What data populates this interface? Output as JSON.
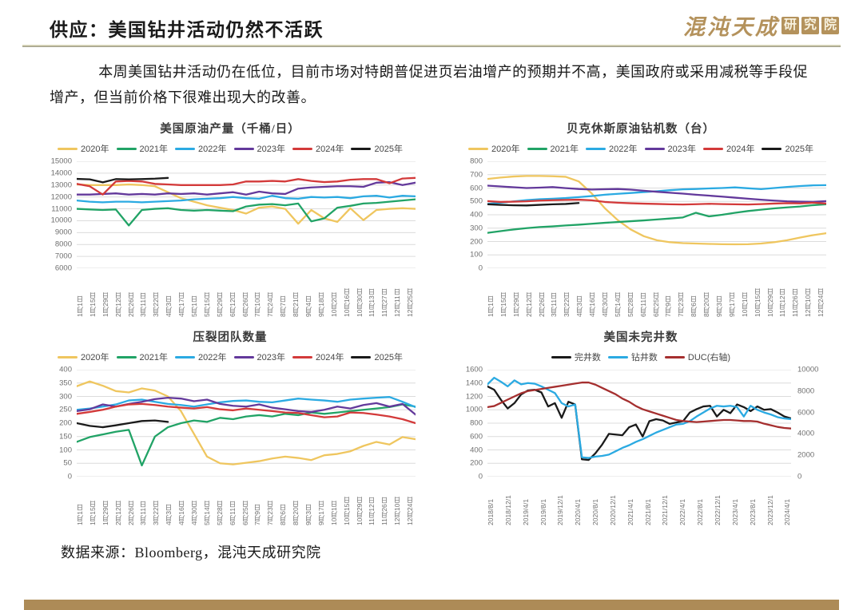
{
  "page": {
    "title": "供应：美国钻井活动仍然不活跃",
    "logo_text": "混沌天成",
    "logo_stamps": [
      "研",
      "究",
      "院"
    ],
    "paragraph": "本周美国钻井活动仍在低位，目前市场对特朗普促进页岩油增产的预期并不高，美国政府或采用减税等手段促增产，但当前价格下很难出现大的改善。",
    "source_note": "数据来源：Bloomberg，混沌天成研究院",
    "accent_color": "#ad8b57",
    "divider_color": "#94927c"
  },
  "chart_data": [
    {
      "type": "line",
      "title": "美国原油产量（千桶/日）",
      "ylim": [
        6000,
        15000
      ],
      "yticks": [
        15000,
        14000,
        13000,
        12000,
        11000,
        10000,
        9000,
        8000,
        7000,
        6000
      ],
      "grid": true,
      "legend_position": "top",
      "categories": [
        "1月1日",
        "1月15日",
        "1月29日",
        "2月12日",
        "2月26日",
        "3月11日",
        "3月22日",
        "4月3日",
        "4月17日",
        "5月1日",
        "5月15日",
        "5月29日",
        "6月12日",
        "6月26日",
        "7月10日",
        "7月24日",
        "8月7日",
        "8月21日",
        "9月4日",
        "9月18日",
        "10月2日",
        "10月16日",
        "10月30日",
        "11月13日",
        "11月27日",
        "12月11日",
        "12月25日"
      ],
      "series": [
        {
          "name": "2020年",
          "color": "#efc65f",
          "values": [
            13050,
            13000,
            13000,
            13000,
            13050,
            13000,
            12900,
            12400,
            11900,
            11600,
            11300,
            11100,
            10900,
            10600,
            11100,
            11200,
            11000,
            9750,
            10900,
            10200,
            9900,
            11050,
            10050,
            10900,
            11000,
            11050,
            11000
          ]
        },
        {
          "name": "2021年",
          "color": "#21a366",
          "values": [
            11000,
            10950,
            10900,
            10950,
            9600,
            10900,
            11000,
            11050,
            10900,
            10850,
            10900,
            10850,
            10800,
            11200,
            11350,
            11400,
            11300,
            11450,
            9950,
            10200,
            11100,
            11250,
            11450,
            11500,
            11600,
            11700,
            11800
          ]
        },
        {
          "name": "2022年",
          "color": "#2baae2",
          "values": [
            11700,
            11600,
            11550,
            11600,
            11600,
            11550,
            11600,
            11650,
            11700,
            11800,
            11850,
            11900,
            12000,
            11900,
            11850,
            12100,
            11900,
            11850,
            12000,
            11950,
            12000,
            11900,
            12050,
            12100,
            11950,
            12100,
            12050
          ]
        },
        {
          "name": "2023年",
          "color": "#63399b",
          "values": [
            12200,
            12200,
            12250,
            12300,
            12200,
            12250,
            12200,
            12300,
            12250,
            12300,
            12200,
            12300,
            12400,
            12200,
            12450,
            12300,
            12250,
            12700,
            12800,
            12850,
            12900,
            12900,
            12850,
            13200,
            13250,
            13000,
            13200
          ]
        },
        {
          "name": "2024年",
          "color": "#d33a3a",
          "values": [
            13100,
            12900,
            12200,
            13300,
            13350,
            13300,
            13100,
            13050,
            13000,
            13000,
            13000,
            13000,
            13050,
            13300,
            13300,
            13350,
            13300,
            13500,
            13350,
            13250,
            13300,
            13450,
            13500,
            13500,
            13150,
            13550,
            13600
          ]
        },
        {
          "name": "2025年",
          "color": "#1a1a1a",
          "values": [
            13520,
            13480,
            13230,
            13500,
            13480,
            13500,
            13540,
            13600
          ]
        }
      ]
    },
    {
      "type": "line",
      "title": "贝克休斯原油钻机数（台）",
      "ylim": [
        0,
        800
      ],
      "yticks": [
        800,
        700,
        600,
        500,
        400,
        300,
        200,
        100,
        0
      ],
      "grid": true,
      "legend_position": "top",
      "categories": [
        "1月1日",
        "1月15日",
        "1月29日",
        "2月12日",
        "2月26日",
        "3月11日",
        "3月22日",
        "4月3日",
        "4月16日",
        "4月30日",
        "5月14日",
        "5月28日",
        "6月11日",
        "6月25日",
        "7月9日",
        "7月23日",
        "8月6日",
        "8月20日",
        "9月3日",
        "9月17日",
        "10月1日",
        "10月15日",
        "10月29日",
        "11月12日",
        "11月26日",
        "12月10日",
        "12月24日"
      ],
      "series": [
        {
          "name": "2020年",
          "color": "#efc65f",
          "values": [
            668,
            678,
            686,
            690,
            690,
            688,
            684,
            650,
            560,
            450,
            360,
            290,
            240,
            210,
            195,
            188,
            185,
            182,
            180,
            179,
            180,
            185,
            195,
            210,
            230,
            248,
            262
          ]
        },
        {
          "name": "2021年",
          "color": "#21a366",
          "values": [
            265,
            278,
            290,
            300,
            308,
            313,
            320,
            326,
            333,
            340,
            346,
            352,
            358,
            365,
            372,
            380,
            415,
            388,
            400,
            415,
            428,
            438,
            448,
            455,
            462,
            472,
            478
          ]
        },
        {
          "name": "2022年",
          "color": "#2baae2",
          "values": [
            481,
            490,
            500,
            510,
            516,
            520,
            525,
            532,
            540,
            550,
            557,
            563,
            570,
            576,
            584,
            590,
            593,
            597,
            600,
            605,
            598,
            592,
            600,
            608,
            615,
            620,
            622
          ]
        },
        {
          "name": "2023年",
          "color": "#63399b",
          "values": [
            618,
            612,
            606,
            600,
            603,
            607,
            599,
            593,
            589,
            591,
            593,
            588,
            580,
            572,
            565,
            558,
            550,
            543,
            536,
            528,
            520,
            513,
            506,
            501,
            498,
            497,
            502
          ]
        },
        {
          "name": "2024年",
          "color": "#d33a3a",
          "values": [
            502,
            496,
            498,
            501,
            506,
            509,
            511,
            513,
            508,
            496,
            490,
            486,
            483,
            481,
            478,
            477,
            479,
            482,
            480,
            478,
            477,
            480,
            484,
            487,
            485,
            490,
            484
          ]
        },
        {
          "name": "2025年",
          "color": "#1a1a1a",
          "values": [
            478,
            474,
            471,
            470,
            474,
            478,
            481,
            488
          ]
        }
      ]
    },
    {
      "type": "line",
      "title": "压裂团队数量",
      "ylim": [
        0,
        400
      ],
      "yticks": [
        400,
        350,
        300,
        250,
        200,
        150,
        100,
        50,
        0
      ],
      "grid": true,
      "legend_position": "top",
      "categories": [
        "1月1日",
        "1月15日",
        "1月29日",
        "2月12日",
        "2月26日",
        "3月11日",
        "3月22日",
        "4月3日",
        "4月16日",
        "4月30日",
        "5月14日",
        "5月28日",
        "6月11日",
        "6月25日",
        "7月9日",
        "7月23日",
        "8月6日",
        "8月20日",
        "9月3日",
        "9月17日",
        "10月1日",
        "10月15日",
        "10月29日",
        "11月12日",
        "11月26日",
        "12月10日",
        "12月24日"
      ],
      "series": [
        {
          "name": "2020年",
          "color": "#efc65f",
          "values": [
            338,
            356,
            340,
            320,
            315,
            330,
            322,
            300,
            245,
            160,
            75,
            50,
            46,
            52,
            58,
            68,
            75,
            70,
            62,
            80,
            85,
            95,
            115,
            130,
            120,
            148,
            140
          ]
        },
        {
          "name": "2021年",
          "color": "#21a366",
          "values": [
            130,
            148,
            158,
            168,
            175,
            42,
            150,
            185,
            200,
            210,
            205,
            220,
            215,
            225,
            230,
            225,
            235,
            230,
            240,
            235,
            240,
            245,
            250,
            255,
            260,
            270,
            262
          ]
        },
        {
          "name": "2022年",
          "color": "#2baae2",
          "values": [
            250,
            255,
            262,
            270,
            285,
            288,
            280,
            272,
            268,
            262,
            270,
            278,
            283,
            285,
            280,
            278,
            285,
            292,
            288,
            285,
            280,
            288,
            292,
            295,
            298,
            280,
            260
          ]
        },
        {
          "name": "2023年",
          "color": "#63399b",
          "values": [
            245,
            252,
            270,
            262,
            272,
            280,
            290,
            295,
            292,
            282,
            288,
            272,
            265,
            262,
            270,
            258,
            252,
            245,
            242,
            250,
            262,
            255,
            268,
            275,
            262,
            272,
            232
          ]
        },
        {
          "name": "2024年",
          "color": "#d33a3a",
          "values": [
            235,
            242,
            250,
            262,
            270,
            272,
            268,
            262,
            258,
            255,
            260,
            252,
            248,
            255,
            250,
            245,
            240,
            238,
            230,
            222,
            225,
            240,
            238,
            232,
            225,
            215,
            200
          ]
        },
        {
          "name": "2025年",
          "color": "#1a1a1a",
          "values": [
            200,
            190,
            185,
            192,
            200,
            208,
            210,
            205
          ]
        }
      ]
    },
    {
      "type": "line",
      "title": "美国未完井数",
      "ylim": [
        0,
        1600
      ],
      "yticks": [
        1600,
        1400,
        1200,
        1000,
        800,
        600,
        400,
        200,
        0
      ],
      "y2lim": [
        0,
        10000
      ],
      "y2ticks": [
        10000,
        8000,
        6000,
        4000,
        2000,
        0
      ],
      "grid": true,
      "legend_position": "top",
      "x_count": 46,
      "categories": [
        "2018/8/1",
        "2018/12/1",
        "2019/4/1",
        "2019/8/1",
        "2019/12/1",
        "2020/4/1",
        "2020/8/1",
        "2020/12/1",
        "2021/4/1",
        "2021/8/1",
        "2021/12/1",
        "2022/4/1",
        "2022/8/1",
        "2022/12/1",
        "2023/4/1",
        "2023/8/1",
        "2023/12/1",
        "2024/4/1"
      ],
      "series": [
        {
          "name": "完井数",
          "color": "#1a1a1a",
          "values": [
            1350,
            1300,
            1150,
            1020,
            1100,
            1230,
            1290,
            1300,
            1260,
            1050,
            1100,
            880,
            1120,
            1080,
            260,
            250,
            350,
            480,
            640,
            630,
            620,
            740,
            780,
            600,
            830,
            860,
            840,
            790,
            810,
            830,
            960,
            1010,
            1050,
            1060,
            900,
            1000,
            950,
            1080,
            1040,
            980,
            1050,
            1000,
            1010,
            960,
            900,
            870
          ]
        },
        {
          "name": "钻井数",
          "color": "#2baae2",
          "values": [
            1380,
            1480,
            1420,
            1350,
            1440,
            1380,
            1400,
            1390,
            1350,
            1300,
            1250,
            1100,
            1050,
            1080,
            290,
            280,
            300,
            310,
            330,
            380,
            430,
            470,
            520,
            560,
            610,
            660,
            700,
            740,
            780,
            790,
            830,
            900,
            960,
            1020,
            1060,
            1050,
            1060,
            1040,
            900,
            1060,
            1000,
            960,
            930,
            890,
            870,
            860
          ]
        },
        {
          "name": "DUC(右轴)",
          "color": "#a52f2f",
          "axis": "right",
          "values": [
            6500,
            6600,
            6900,
            7200,
            7500,
            7800,
            8000,
            8100,
            8200,
            8300,
            8400,
            8500,
            8600,
            8700,
            8800,
            8800,
            8600,
            8300,
            8000,
            7700,
            7300,
            7000,
            6600,
            6300,
            6100,
            5900,
            5700,
            5500,
            5300,
            5200,
            5150,
            5100,
            5150,
            5200,
            5250,
            5300,
            5300,
            5250,
            5200,
            5200,
            5150,
            4950,
            4800,
            4650,
            4550,
            4500
          ]
        }
      ]
    }
  ]
}
